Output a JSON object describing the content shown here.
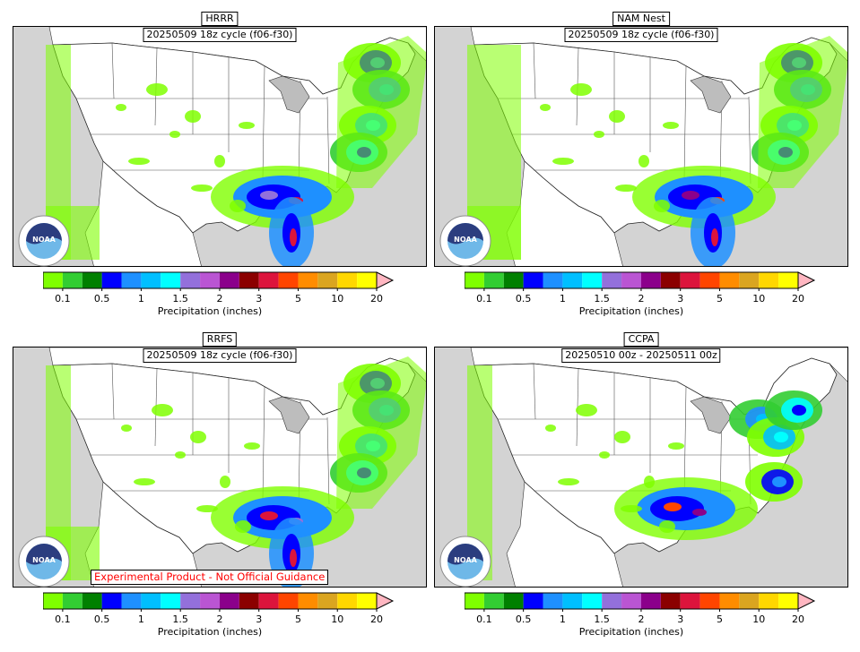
{
  "panels": [
    {
      "model": "HRRR",
      "cycle": "20250509 18z cycle (f06-f30)"
    },
    {
      "model": "NAM Nest",
      "cycle": "20250509 18z cycle (f06-f30)"
    },
    {
      "model": "RRFS",
      "cycle": "20250509 18z cycle (f06-f30)",
      "warning": "Experimental Product - Not Official Guidance"
    },
    {
      "model": "CCPA",
      "cycle": "20250510 00z - 20250511 00z"
    }
  ],
  "logo": {
    "text": "NOAA",
    "icon": "noaa-logo"
  },
  "colorbar": {
    "label": "Precipitation (inches)",
    "ticks": [
      "0.1",
      "0.5",
      "1",
      "1.5",
      "2",
      "3",
      "5",
      "10",
      "20"
    ],
    "colors": [
      "#7fff00",
      "#32cd32",
      "#008000",
      "#0000ff",
      "#1e90ff",
      "#00bfff",
      "#00ffff",
      "#9370db",
      "#ba55d3",
      "#8b008b",
      "#8b0000",
      "#dc143c",
      "#ff4500",
      "#ff8c00",
      "#daa520",
      "#ffd700",
      "#ffff00"
    ],
    "extend_color": "#ffb6c1"
  }
}
